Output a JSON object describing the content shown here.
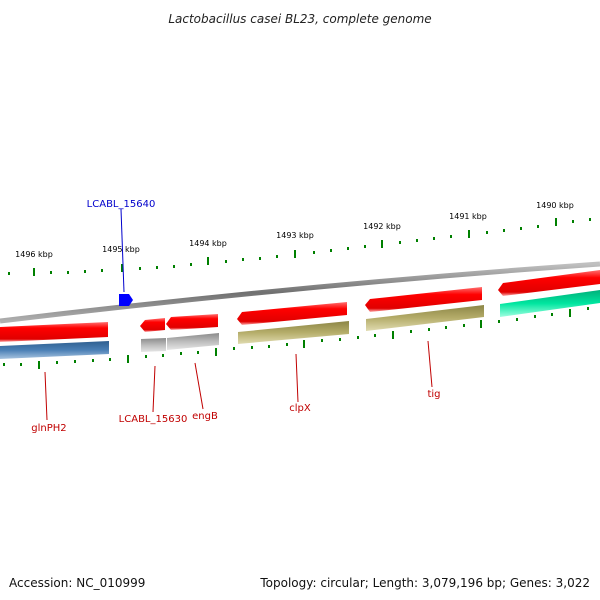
{
  "title": "Lactobacillus casei BL23, complete genome",
  "scale_labels": [
    "1496 kbp",
    "1495 kbp",
    "1494 kbp",
    "1493 kbp",
    "1492 kbp",
    "1491 kbp",
    "1490 kbp"
  ],
  "gene_labels": {
    "glnPH2": "glnPH2",
    "LCABL_15630": "LCABL_15630",
    "engB": "engB",
    "clpX": "clpX",
    "tig": "tig",
    "LCABL_15640": "LCABL_15640"
  },
  "colors": {
    "cds": "#ff0000",
    "gene_label": "#c00000",
    "highlight_label": "#0000cc",
    "tick": "#008000",
    "backbone": "#808080",
    "steelblue": "#4a7fb5",
    "grey_feature": "#b8b8b8",
    "olive": "#b5ad6a",
    "teal": "#00e6a0",
    "marker": "#0000ff"
  },
  "footer": {
    "accession": "Accession: NC_010999",
    "summary": "Topology: circular; Length: 3,079,196 bp; Genes: 3,022"
  }
}
